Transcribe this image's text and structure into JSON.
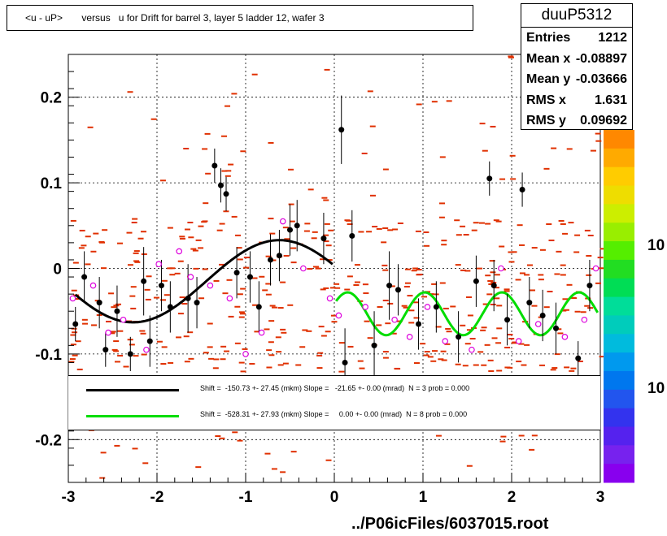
{
  "title": "<u - uP>       versus   u for Drift for barrel 3, layer 5 ladder 12, wafer 3",
  "stats": {
    "name": "duuP5312",
    "rows": [
      {
        "label": "Entries",
        "value": "1212"
      },
      {
        "label": "Mean x",
        "value": "-0.08897"
      },
      {
        "label": "Mean y",
        "value": "-0.03666"
      },
      {
        "label": "RMS x",
        "value": "1.631"
      },
      {
        "label": "RMS y",
        "value": "0.09692"
      }
    ]
  },
  "legend": [
    {
      "color": "#000000",
      "text": "Shift =  -150.73 +- 27.45 (mkm) Slope =   -21.65 +- 0.00 (mrad)  N = 3 prob = 0.000"
    },
    {
      "color": "#00dd00",
      "text": "Shift =  -528.31 +- 27.93 (mkm) Slope =     0.00 +- 0.00 (mrad)  N = 8 prob = 0.000"
    }
  ],
  "footer": "../P06icFiles/6037015.root",
  "colorbar_labels": [
    "10",
    "10"
  ],
  "chart_data": {
    "type": "scatter",
    "xlim": [
      -3,
      3
    ],
    "ylim": [
      -0.25,
      0.25
    ],
    "xticks": [
      "-3",
      "-2",
      "-1",
      "0",
      "1",
      "2",
      "3"
    ],
    "yticks": [
      "-0.2",
      "-0.1",
      "0",
      "0.1",
      "0.2"
    ],
    "grid": true,
    "colors": {
      "hist": "#e03000",
      "black_fit": "#000000",
      "green_fit": "#00dd00",
      "open_marker": "#dd00dd"
    },
    "black_points": [
      {
        "x": -2.92,
        "y": -0.065,
        "e": 0.02
      },
      {
        "x": -2.82,
        "y": -0.01,
        "e": 0.03
      },
      {
        "x": -2.65,
        "y": -0.04,
        "e": 0.03
      },
      {
        "x": -2.58,
        "y": -0.095,
        "e": 0.02
      },
      {
        "x": -2.45,
        "y": -0.05,
        "e": 0.03
      },
      {
        "x": -2.3,
        "y": -0.1,
        "e": 0.02
      },
      {
        "x": -2.15,
        "y": -0.015,
        "e": 0.04
      },
      {
        "x": -2.08,
        "y": -0.085,
        "e": 0.03
      },
      {
        "x": -1.95,
        "y": -0.02,
        "e": 0.03
      },
      {
        "x": -1.85,
        "y": -0.045,
        "e": 0.03
      },
      {
        "x": -1.65,
        "y": -0.035,
        "e": 0.04
      },
      {
        "x": -1.55,
        "y": -0.04,
        "e": 0.03
      },
      {
        "x": -1.35,
        "y": 0.12,
        "e": 0.02
      },
      {
        "x": -1.28,
        "y": 0.097,
        "e": 0.02
      },
      {
        "x": -1.22,
        "y": 0.087,
        "e": 0.02
      },
      {
        "x": -1.1,
        "y": -0.005,
        "e": 0.03
      },
      {
        "x": -0.95,
        "y": -0.01,
        "e": 0.03
      },
      {
        "x": -0.85,
        "y": -0.045,
        "e": 0.03
      },
      {
        "x": -0.72,
        "y": 0.01,
        "e": 0.03
      },
      {
        "x": -0.62,
        "y": 0.015,
        "e": 0.03
      },
      {
        "x": -0.5,
        "y": 0.045,
        "e": 0.03
      },
      {
        "x": -0.42,
        "y": 0.05,
        "e": 0.03
      },
      {
        "x": -0.12,
        "y": 0.035,
        "e": 0.03
      },
      {
        "x": 0.08,
        "y": 0.162,
        "e": 0.04
      },
      {
        "x": 0.12,
        "y": -0.11,
        "e": 0.04
      },
      {
        "x": 0.2,
        "y": 0.038,
        "e": 0.03
      },
      {
        "x": 0.45,
        "y": -0.09,
        "e": 0.04
      },
      {
        "x": 0.62,
        "y": -0.02,
        "e": 0.04
      },
      {
        "x": 0.72,
        "y": -0.025,
        "e": 0.03
      },
      {
        "x": 0.95,
        "y": -0.065,
        "e": 0.03
      },
      {
        "x": 1.15,
        "y": -0.045,
        "e": 0.03
      },
      {
        "x": 1.4,
        "y": -0.08,
        "e": 0.03
      },
      {
        "x": 1.6,
        "y": -0.015,
        "e": 0.03
      },
      {
        "x": 1.75,
        "y": 0.105,
        "e": 0.02
      },
      {
        "x": 1.8,
        "y": -0.02,
        "e": 0.03
      },
      {
        "x": 1.95,
        "y": -0.06,
        "e": 0.03
      },
      {
        "x": 2.12,
        "y": 0.092,
        "e": 0.02
      },
      {
        "x": 2.2,
        "y": -0.04,
        "e": 0.03
      },
      {
        "x": 2.35,
        "y": -0.055,
        "e": 0.03
      },
      {
        "x": 2.5,
        "y": -0.07,
        "e": 0.03
      },
      {
        "x": 2.75,
        "y": -0.105,
        "e": 0.02
      },
      {
        "x": 2.88,
        "y": -0.02,
        "e": 0.03
      }
    ],
    "open_points": [
      {
        "x": -2.95,
        "y": -0.035
      },
      {
        "x": -2.72,
        "y": -0.02
      },
      {
        "x": -2.55,
        "y": -0.075
      },
      {
        "x": -2.38,
        "y": -0.06
      },
      {
        "x": -2.12,
        "y": -0.095
      },
      {
        "x": -1.98,
        "y": 0.005
      },
      {
        "x": -1.75,
        "y": 0.02
      },
      {
        "x": -1.62,
        "y": -0.01
      },
      {
        "x": -1.4,
        "y": -0.02
      },
      {
        "x": -1.18,
        "y": -0.035
      },
      {
        "x": -1.0,
        "y": -0.1
      },
      {
        "x": -0.82,
        "y": -0.075
      },
      {
        "x": -0.58,
        "y": 0.055
      },
      {
        "x": -0.35,
        "y": 0.0
      },
      {
        "x": -0.05,
        "y": -0.035
      },
      {
        "x": 0.05,
        "y": -0.055
      },
      {
        "x": 0.35,
        "y": -0.045
      },
      {
        "x": 0.68,
        "y": -0.06
      },
      {
        "x": 0.85,
        "y": -0.08
      },
      {
        "x": 1.05,
        "y": -0.045
      },
      {
        "x": 1.25,
        "y": -0.085
      },
      {
        "x": 1.55,
        "y": -0.095
      },
      {
        "x": 1.88,
        "y": 0.0
      },
      {
        "x": 2.08,
        "y": -0.085
      },
      {
        "x": 2.3,
        "y": -0.065
      },
      {
        "x": 2.6,
        "y": -0.08
      },
      {
        "x": 2.82,
        "y": -0.06
      },
      {
        "x": 2.95,
        "y": 0.0
      }
    ],
    "fit_black": {
      "x_range": [
        -2.92,
        -0.02
      ],
      "mean": -0.015,
      "amp": 0.048,
      "period": 3.3,
      "phase_x": -0.62
    },
    "fit_green": {
      "x_range": [
        0.02,
        2.97
      ],
      "mean": -0.053,
      "amp": 0.025,
      "period": 0.87,
      "phase_x": 0.15
    }
  }
}
